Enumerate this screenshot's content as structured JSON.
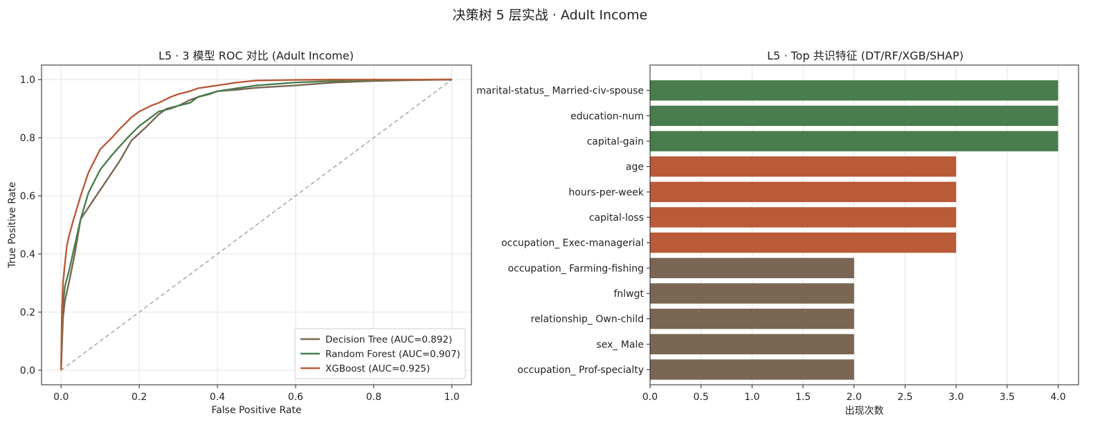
{
  "figure": {
    "suptitle": "决策树 5 层实战 · Adult Income"
  },
  "chart_data": [
    {
      "type": "line",
      "title": "L5 · 3 模型 ROC 对比 (Adult Income)",
      "xlabel": "False Positive Rate",
      "ylabel": "True Positive Rate",
      "xlim": [
        -0.05,
        1.05
      ],
      "ylim": [
        -0.05,
        1.05
      ],
      "xticks": [
        "0.0",
        "0.2",
        "0.4",
        "0.6",
        "0.8",
        "1.0"
      ],
      "yticks": [
        "0.0",
        "0.2",
        "0.4",
        "0.6",
        "0.8",
        "1.0"
      ],
      "grid": true,
      "legend_position": "lower-right",
      "diagonal_reference": {
        "x": [
          0,
          1
        ],
        "y": [
          0,
          1
        ],
        "color": "#aaaaaa",
        "style": "dashed"
      },
      "series": [
        {
          "name": "Decision Tree (AUC=0.892)",
          "color": "#7a6652",
          "x": [
            0,
            0.005,
            0.01,
            0.02,
            0.035,
            0.05,
            0.1,
            0.15,
            0.18,
            0.22,
            0.25,
            0.27,
            0.3,
            0.33,
            0.35,
            0.38,
            0.4,
            0.45,
            0.5,
            0.6,
            0.7,
            0.8,
            0.9,
            1.0
          ],
          "y": [
            0,
            0.18,
            0.24,
            0.3,
            0.4,
            0.52,
            0.62,
            0.72,
            0.79,
            0.84,
            0.88,
            0.9,
            0.91,
            0.93,
            0.94,
            0.95,
            0.96,
            0.965,
            0.972,
            0.98,
            0.99,
            0.995,
            0.998,
            1.0
          ]
        },
        {
          "name": "Random Forest (AUC=0.907)",
          "color": "#4a7d4e",
          "x": [
            0,
            0.003,
            0.01,
            0.02,
            0.03,
            0.05,
            0.07,
            0.1,
            0.13,
            0.15,
            0.17,
            0.2,
            0.23,
            0.25,
            0.28,
            0.3,
            0.33,
            0.35,
            0.4,
            0.45,
            0.5,
            0.6,
            0.7,
            0.8,
            0.9,
            1.0
          ],
          "y": [
            0,
            0.2,
            0.29,
            0.34,
            0.4,
            0.52,
            0.61,
            0.69,
            0.74,
            0.77,
            0.8,
            0.84,
            0.87,
            0.89,
            0.9,
            0.91,
            0.92,
            0.94,
            0.96,
            0.97,
            0.98,
            0.99,
            0.995,
            0.998,
            0.999,
            1.0
          ]
        },
        {
          "name": "XGBoost (AUC=0.925)",
          "color": "#b95a38",
          "x": [
            0,
            0.002,
            0.005,
            0.01,
            0.015,
            0.02,
            0.03,
            0.05,
            0.07,
            0.1,
            0.13,
            0.15,
            0.18,
            0.2,
            0.23,
            0.25,
            0.28,
            0.3,
            0.33,
            0.35,
            0.4,
            0.45,
            0.5,
            0.6,
            0.7,
            0.8,
            0.9,
            1.0
          ],
          "y": [
            0,
            0.2,
            0.3,
            0.37,
            0.43,
            0.46,
            0.51,
            0.6,
            0.68,
            0.76,
            0.8,
            0.83,
            0.87,
            0.89,
            0.91,
            0.92,
            0.94,
            0.95,
            0.96,
            0.97,
            0.98,
            0.99,
            0.997,
            0.999,
            1.0,
            1.0,
            1.0,
            1.0
          ]
        }
      ]
    },
    {
      "type": "bar",
      "orientation": "horizontal",
      "title": "L5 · Top 共识特征 (DT/RF/XGB/SHAP)",
      "xlabel": "出现次数",
      "ylabel": "",
      "xlim": [
        0,
        4.2
      ],
      "xticks": [
        "0.0",
        "0.5",
        "1.0",
        "1.5",
        "2.0",
        "2.5",
        "3.0",
        "3.5",
        "4.0"
      ],
      "grid": true,
      "categories": [
        "marital-status_ Married-civ-spouse",
        "education-num",
        "capital-gain",
        "age",
        "hours-per-week",
        "capital-loss",
        "occupation_ Exec-managerial",
        "occupation_ Farming-fishing",
        "fnlwgt",
        "relationship_ Own-child",
        "sex_ Male",
        "occupation_ Prof-specialty"
      ],
      "values": [
        4,
        4,
        4,
        3,
        3,
        3,
        3,
        2,
        2,
        2,
        2,
        2
      ],
      "colors": {
        "4": "#4a7d4e",
        "3": "#b95a38",
        "2": "#7a6652"
      }
    }
  ]
}
